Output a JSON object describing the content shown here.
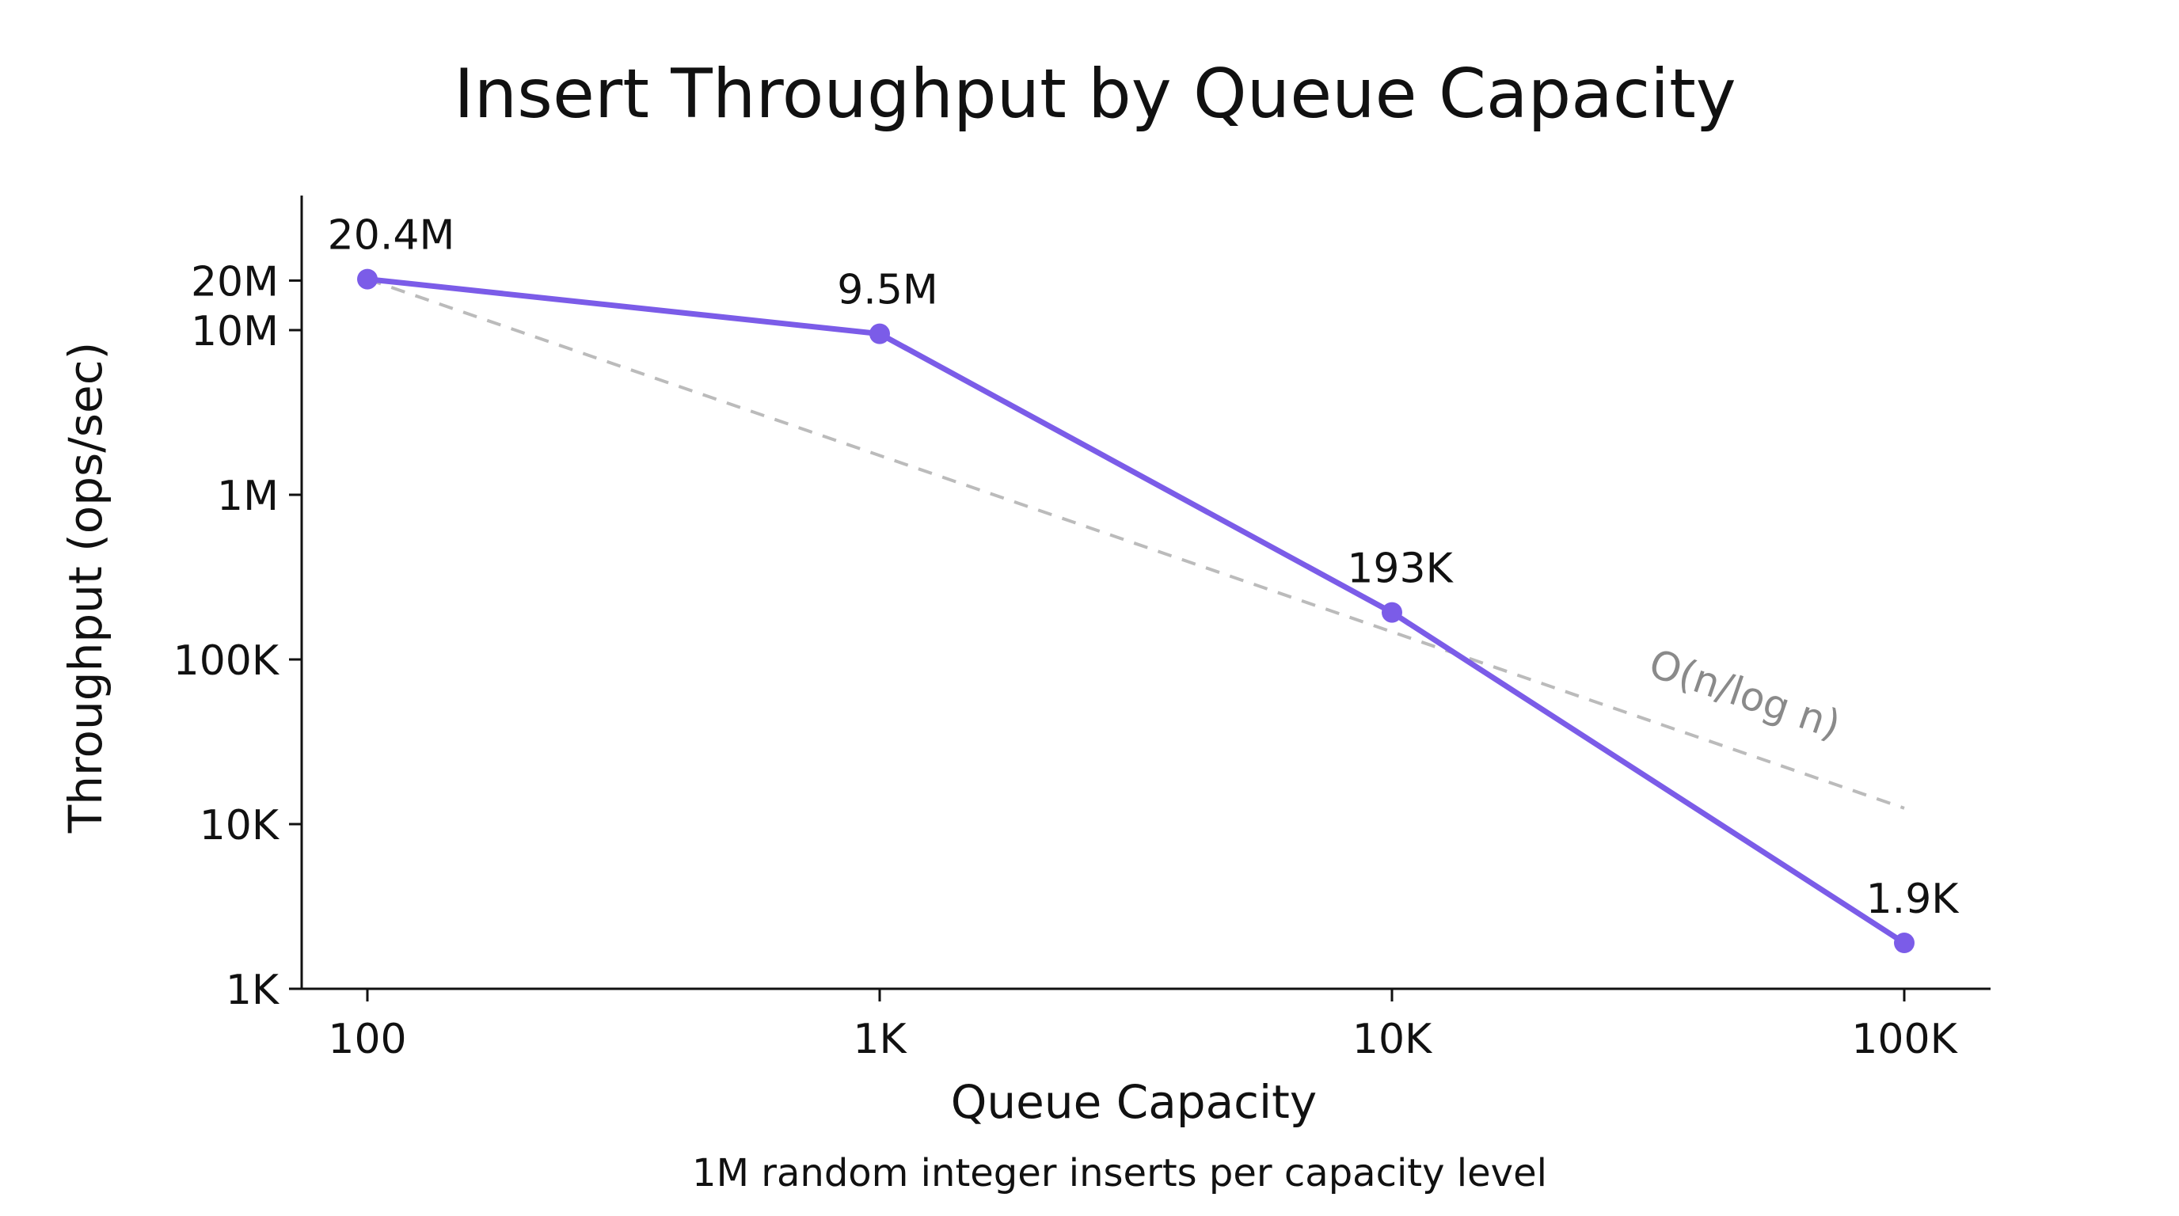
{
  "chart_data": {
    "type": "line",
    "title": "Insert Throughput by Queue Capacity",
    "subtitle": "1M random integer inserts per capacity level",
    "xlabel": "Queue Capacity",
    "ylabel": "Throughput (ops/sec)",
    "x_scale": "log",
    "y_scale": "log",
    "xlim": [
      75,
      145000
    ],
    "ylim": [
      1000,
      65000000
    ],
    "x_ticks": [
      {
        "value": 100,
        "label": "100"
      },
      {
        "value": 1000,
        "label": "1K"
      },
      {
        "value": 10000,
        "label": "10K"
      },
      {
        "value": 100000,
        "label": "100K"
      }
    ],
    "y_ticks": [
      {
        "value": 1000,
        "label": "1K"
      },
      {
        "value": 10000,
        "label": "10K"
      },
      {
        "value": 100000,
        "label": "100K"
      },
      {
        "value": 1000000,
        "label": "1M"
      },
      {
        "value": 10000000,
        "label": "10M"
      },
      {
        "value": 20000000,
        "label": "20M"
      }
    ],
    "grid": false,
    "series": [
      {
        "x": [
          100,
          1000,
          10000,
          100000
        ],
        "y": [
          20400000,
          9500000,
          193000,
          1900
        ],
        "labels": [
          "20.4M",
          "9.5M",
          "193K",
          "1.9K"
        ],
        "color": "#7B5CE8",
        "markers": true
      }
    ],
    "reference": {
      "name": "O(n/log n)",
      "x": [
        100,
        100000
      ],
      "y": [
        20400000,
        12500
      ],
      "color": "#BBBBBB",
      "style": "dashed"
    }
  }
}
